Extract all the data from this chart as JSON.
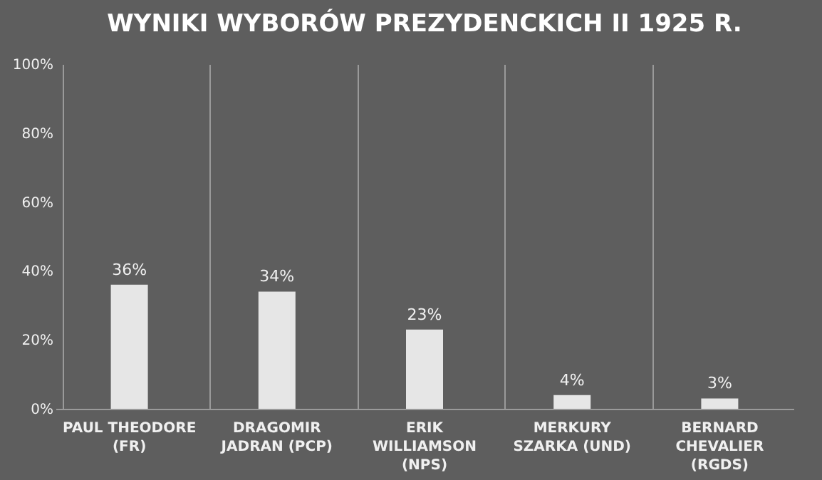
{
  "chart_data": {
    "type": "bar",
    "title": "WYNIKI WYBORÓW PREZYDENCKICH II 1925 R.",
    "categories": [
      "PAUL THEODORE (FR)",
      "DRAGOMIR JADRAN (PCP)",
      "ERIK WILLIAMSON (NPS)",
      "MERKURY SZARKA (UND)",
      "BERNARD CHEVALIER (RGDS)"
    ],
    "values": [
      36,
      34,
      23,
      4,
      3
    ],
    "color": "#e6e6e6",
    "ylim": [
      0,
      100
    ],
    "yticks": [
      {
        "value": 0,
        "label": "0%"
      },
      {
        "value": 20,
        "label": "20%"
      },
      {
        "value": 40,
        "label": "40%"
      },
      {
        "value": 60,
        "label": "60%"
      },
      {
        "value": 80,
        "label": "80%"
      },
      {
        "value": 100,
        "label": "100%"
      }
    ],
    "value_labels": [
      "36%",
      "34%",
      "23%",
      "4%",
      "3%"
    ],
    "grid": "x"
  }
}
